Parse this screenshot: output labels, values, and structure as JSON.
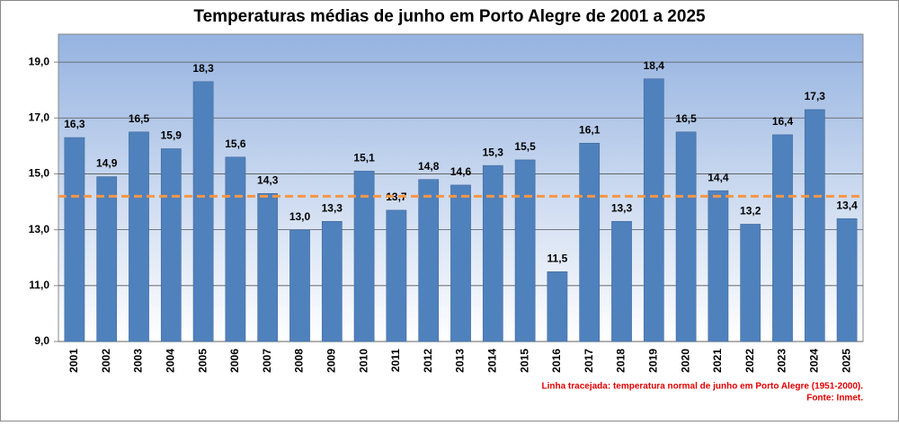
{
  "chart_data": {
    "type": "bar",
    "title": "Temperaturas médias de junho em Porto Alegre de 2001 a 2025",
    "categories": [
      "2001",
      "2002",
      "2003",
      "2004",
      "2005",
      "2006",
      "2007",
      "2008",
      "2009",
      "2010",
      "2011",
      "2012",
      "2013",
      "2014",
      "2015",
      "2016",
      "2017",
      "2018",
      "2019",
      "2020",
      "2021",
      "2022",
      "2023",
      "2024",
      "2025"
    ],
    "values": [
      16.3,
      14.9,
      16.5,
      15.9,
      18.3,
      15.6,
      14.3,
      13.0,
      13.3,
      15.1,
      13.7,
      14.8,
      14.6,
      15.3,
      15.5,
      11.5,
      16.1,
      13.3,
      18.4,
      16.5,
      14.4,
      13.2,
      16.4,
      17.3,
      13.4
    ],
    "value_labels": [
      "16,3",
      "14,9",
      "16,5",
      "15,9",
      "18,3",
      "15,6",
      "14,3",
      "13,0",
      "13,3",
      "15,1",
      "13,7",
      "14,8",
      "14,6",
      "15,3",
      "15,5",
      "11,5",
      "16,1",
      "13,3",
      "18,4",
      "16,5",
      "14,4",
      "13,2",
      "16,4",
      "17,3",
      "13,4"
    ],
    "color": "#4f81bd",
    "ylim": [
      9,
      20
    ],
    "yticks": [
      {
        "value": 9,
        "label": "9,0"
      },
      {
        "value": 11,
        "label": "11,0"
      },
      {
        "value": 13,
        "label": "13,0"
      },
      {
        "value": 15,
        "label": "15,0"
      },
      {
        "value": 17,
        "label": "17,0"
      },
      {
        "value": 19,
        "label": "19,0"
      }
    ],
    "grid": true,
    "reference_line": {
      "value": 14.2,
      "color": "#f79646"
    },
    "notes": [
      "Linha tracejada: temperatura normal de junho em Porto Alegre (1951-2000).",
      "Fonte: Inmet."
    ]
  }
}
